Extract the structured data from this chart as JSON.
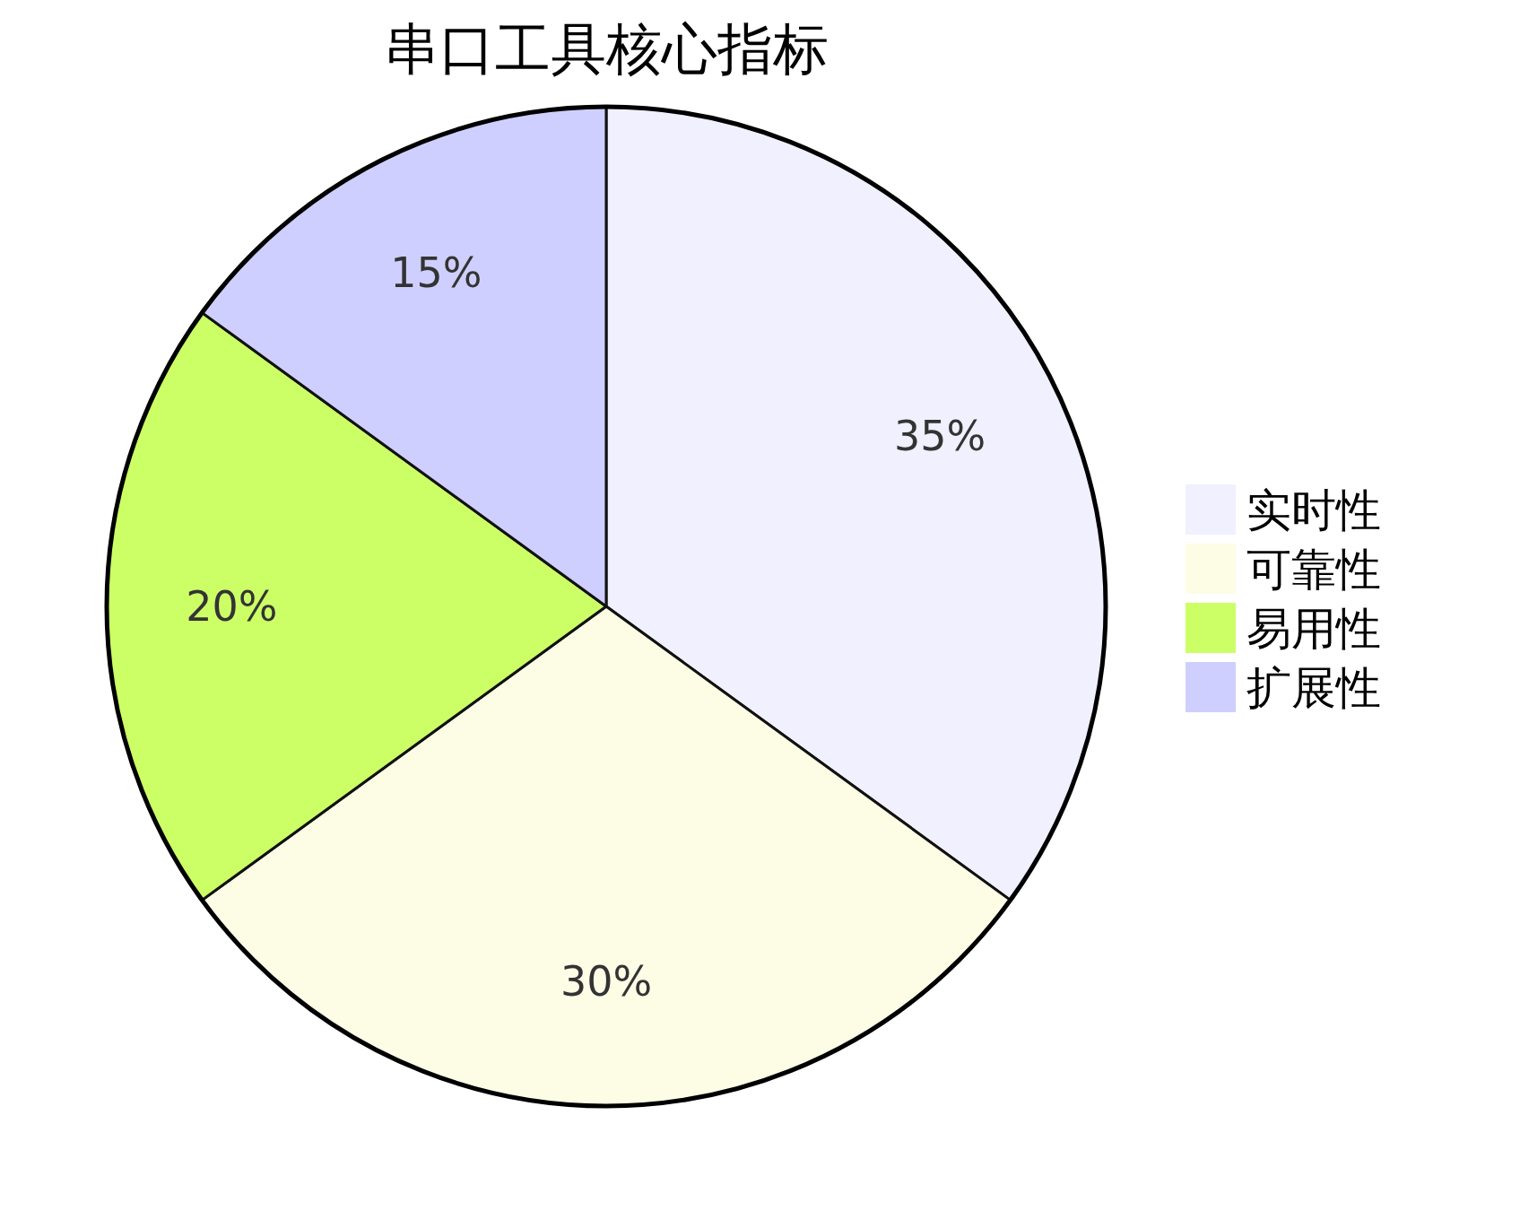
{
  "chart_data": {
    "type": "pie",
    "title": "串口工具核心指标",
    "categories": [
      "实时性",
      "可靠性",
      "易用性",
      "扩展性"
    ],
    "values": [
      35,
      30,
      20,
      15
    ],
    "value_labels": [
      "35%",
      "30%",
      "20%",
      "15%"
    ],
    "colors": [
      "#f0f0ff",
      "#fdfde6",
      "#ccff66",
      "#cfcfff"
    ],
    "legend": "right"
  }
}
